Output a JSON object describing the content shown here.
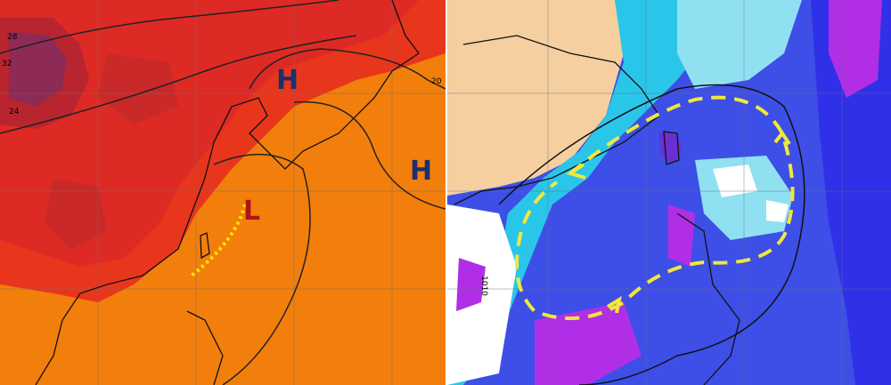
{
  "left_panel": {
    "contour_labels": [
      "28",
      "32",
      "24",
      "20"
    ],
    "pressure_labels": [
      "H",
      "H",
      "L"
    ]
  },
  "right_panel": {
    "contour_labels": [
      "1010"
    ]
  }
}
